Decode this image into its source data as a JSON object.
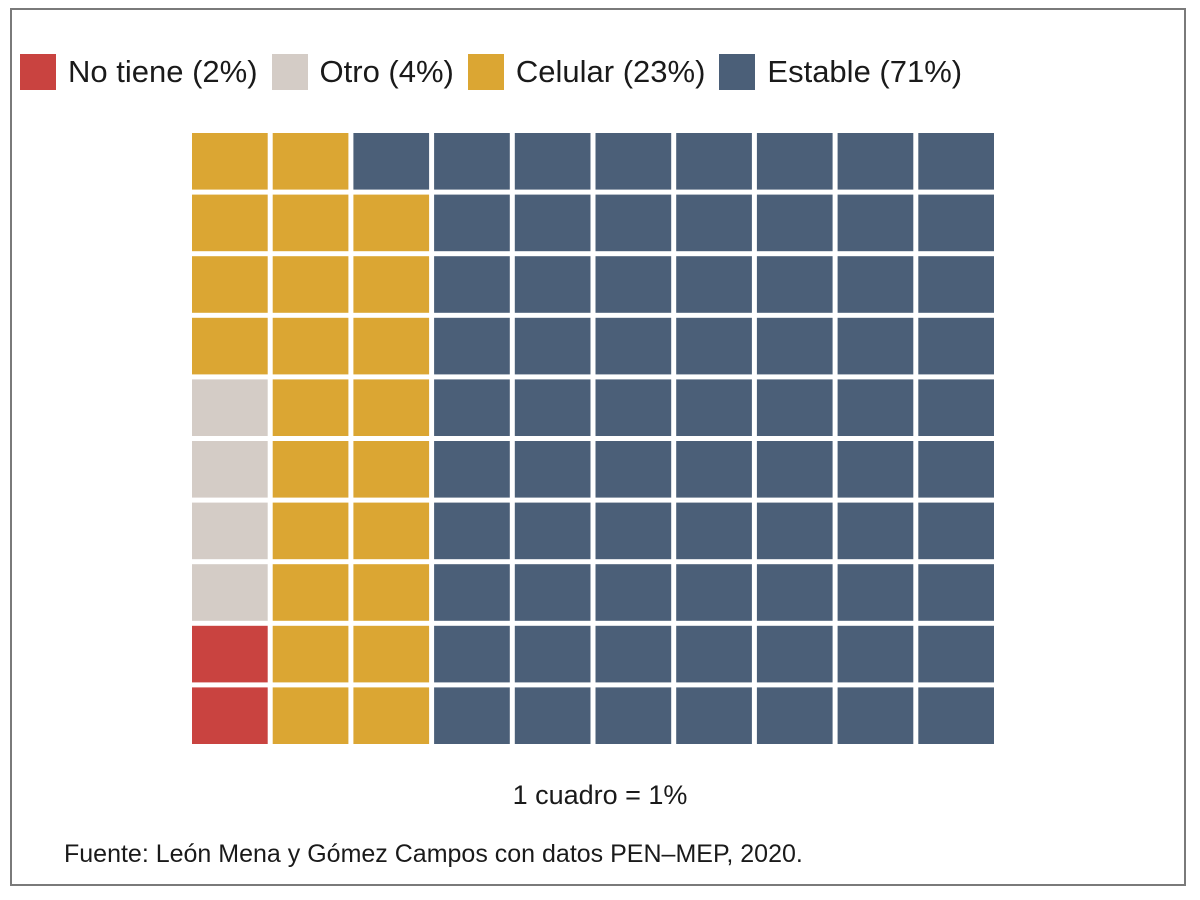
{
  "chart_data": {
    "type": "waffle",
    "grid": {
      "rows": 10,
      "cols": 10
    },
    "unit_note": "1 cuadro = 1%",
    "source": "Fuente: León Mena y Gómez Campos con datos PEN–MEP, 2020.",
    "legend_placement": "top",
    "categories": [
      {
        "key": "no_tiene",
        "label": "No tiene (2%)",
        "value": 2,
        "color": "#c94340"
      },
      {
        "key": "otro",
        "label": "Otro (4%)",
        "value": 4,
        "color": "#d4ccc6"
      },
      {
        "key": "celular",
        "label": "Celular (23%)",
        "value": 23,
        "color": "#dba633"
      },
      {
        "key": "estable",
        "label": "Estable (71%)",
        "value": 71,
        "color": "#4b5f78"
      }
    ],
    "fill_order": [
      "no_tiene",
      "otro",
      "celular",
      "estable"
    ],
    "fill_direction": "column-wise, bottom-to-top, left-to-right"
  }
}
